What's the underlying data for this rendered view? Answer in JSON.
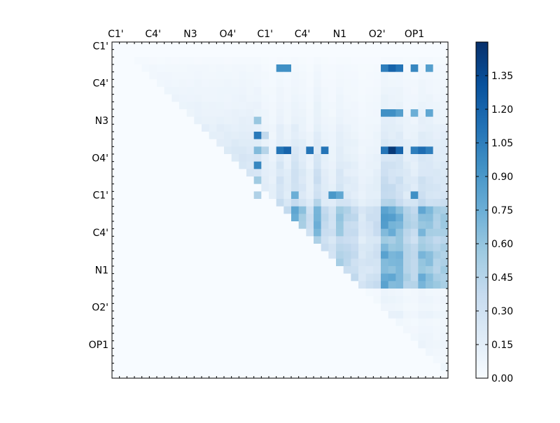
{
  "chart_data": {
    "type": "heatmap",
    "colormap": "Blues",
    "grid": false,
    "colorbar_position": "right",
    "x_ticks_top": [
      "C1'",
      "C4'",
      "N3",
      "O4'",
      "C1'",
      "C4'",
      "N1",
      "O2'",
      "OP1"
    ],
    "y_ticks_left": [
      "C1'",
      "C4'",
      "N3",
      "O4'",
      "C1'",
      "C4'",
      "N1",
      "O2'",
      "OP1"
    ],
    "colorbar": {
      "ticks": [
        "0.00",
        "0.15",
        "0.30",
        "0.45",
        "0.60",
        "0.75",
        "0.90",
        "1.05",
        "1.20",
        "1.35"
      ],
      "range": [
        0,
        1.5
      ]
    },
    "n": 45,
    "row_base": [
      0,
      0,
      0.02,
      0.04,
      0.05,
      0.06,
      0.07,
      0.08,
      0.09,
      0.1,
      0.12,
      0.14,
      0.16,
      0.18,
      0.2,
      0.22,
      0.24,
      0.26,
      0.28,
      0.3,
      0.3,
      0.38,
      0.7,
      0.68,
      0.66,
      0.64,
      0.5,
      0.6,
      0.62,
      0.64,
      0.6,
      0.68,
      0.7,
      0.06,
      0.08,
      0.06,
      0.1,
      0.05,
      0.06,
      0.07,
      0.08,
      0.06,
      0.05,
      0.07,
      0.06
    ],
    "col_factor": [
      1,
      1,
      1,
      1,
      1,
      1,
      1,
      1,
      1,
      1,
      1,
      1,
      1,
      1,
      1,
      1,
      1,
      1,
      1,
      1,
      0.65,
      0.45,
      0.95,
      0.6,
      1.05,
      0.78,
      0.45,
      1.1,
      0.58,
      0.45,
      0.82,
      0.62,
      0.55,
      0.35,
      0.42,
      0.5,
      1.2,
      1.1,
      1.05,
      0.7,
      0.62,
      1.0,
      0.92,
      0.75,
      0.8
    ],
    "peaks": [
      [
        14,
        19,
        0.66
      ],
      [
        12,
        19,
        1.08
      ],
      [
        16,
        19,
        1.0
      ],
      [
        10,
        19,
        0.58
      ],
      [
        18,
        19,
        0.55
      ],
      [
        20,
        19,
        0.48
      ],
      [
        14,
        20,
        0.45
      ],
      [
        12,
        20,
        0.4
      ],
      [
        14,
        36,
        1.1
      ],
      [
        14,
        37,
        1.45
      ],
      [
        14,
        38,
        1.2
      ],
      [
        14,
        40,
        1.05
      ],
      [
        14,
        41,
        1.15
      ],
      [
        14,
        42,
        1.05
      ],
      [
        14,
        22,
        1.1
      ],
      [
        14,
        23,
        1.2
      ],
      [
        14,
        26,
        1.1
      ],
      [
        14,
        28,
        1.1
      ],
      [
        3,
        36,
        1.05
      ],
      [
        3,
        37,
        1.2
      ],
      [
        3,
        38,
        1.1
      ],
      [
        3,
        40,
        1.0
      ],
      [
        3,
        42,
        0.85
      ],
      [
        3,
        22,
        0.95
      ],
      [
        3,
        23,
        0.95
      ],
      [
        9,
        36,
        0.95
      ],
      [
        9,
        37,
        0.95
      ],
      [
        9,
        38,
        0.85
      ],
      [
        9,
        40,
        0.75
      ],
      [
        9,
        42,
        0.8
      ],
      [
        20,
        29,
        0.9
      ],
      [
        20,
        30,
        0.8
      ],
      [
        20,
        40,
        0.95
      ],
      [
        20,
        24,
        0.75
      ]
    ]
  }
}
